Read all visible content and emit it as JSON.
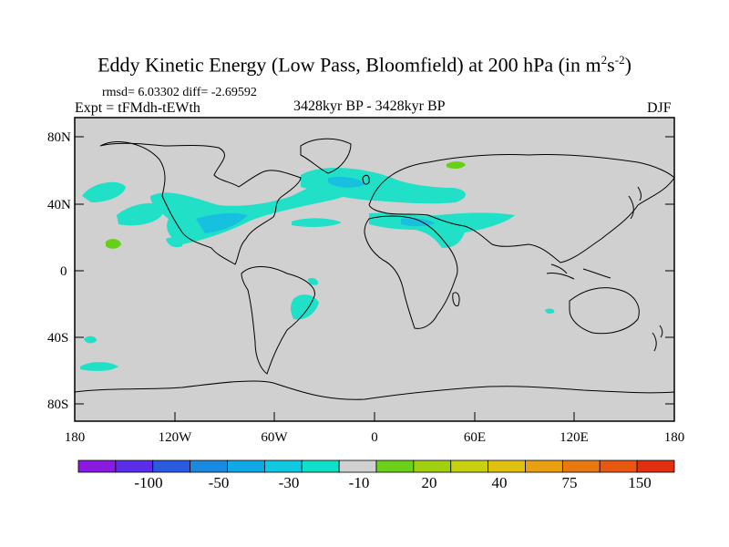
{
  "title": {
    "main": "Eddy Kinetic Energy (Low Pass, Bloomfield) at 200 hPa (in m",
    "sup1": "2",
    "mid": "s",
    "sup2": "-2",
    "close": ")"
  },
  "stats": "rmsd= 6.03302 diff= -2.69592",
  "expt": "Expt = tFMdh-tEWth",
  "period": "3428kyr BP - 3428kyr BP",
  "season": "DJF",
  "lat_ticks": [
    "80N",
    "40N",
    "0",
    "40S",
    "80S"
  ],
  "lon_ticks": [
    "180",
    "120W",
    "60W",
    "0",
    "60E",
    "120E",
    "180"
  ],
  "colorbar": {
    "colors": [
      "#8a1ae0",
      "#5a2ee8",
      "#2a5ae0",
      "#1a8ae0",
      "#12a8e8",
      "#10c8e0",
      "#10e0c8",
      "#d0d0d0",
      "#6ad01a",
      "#a0d010",
      "#c8d010",
      "#e0c010",
      "#e8a010",
      "#e87810",
      "#e85810",
      "#e03010"
    ],
    "labels": [
      "-100",
      "-50",
      "-30",
      "-10",
      "20",
      "40",
      "75",
      "150"
    ]
  },
  "colors": {
    "ocean_land": "#d0d0d0",
    "cyan_fill": "#20e0c8",
    "blue_fill": "#18c0e0",
    "green_fill": "#66d018"
  }
}
